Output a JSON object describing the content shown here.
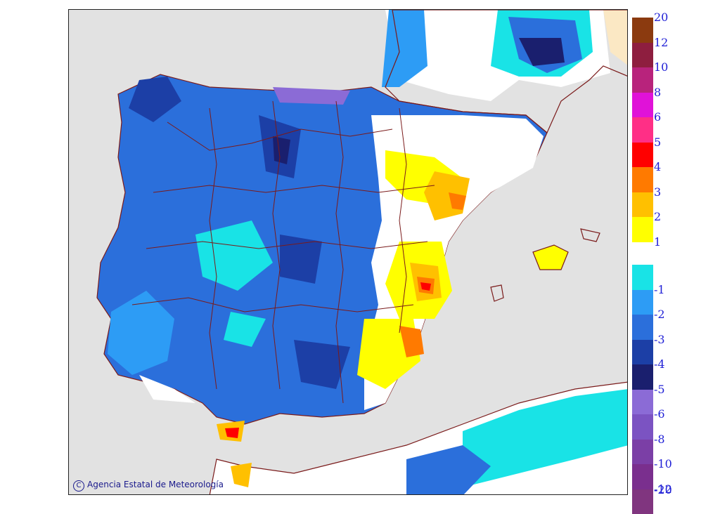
{
  "map": {
    "credit_text": "Agencia Estatal de Meteorología",
    "copyright_symbol": "C",
    "colors": {
      "sea": "#e2e2e2",
      "border": "#7a1a1a",
      "outside_domain": "#fbe8c4"
    }
  },
  "legend": {
    "warm": [
      {
        "label": "20",
        "color": "#8b3a0f"
      },
      {
        "label": "12",
        "color": "#8e1e3f"
      },
      {
        "label": "10",
        "color": "#b8237c"
      },
      {
        "label": "8",
        "color": "#e012d8"
      },
      {
        "label": "6",
        "color": "#ff2f86"
      },
      {
        "label": "5",
        "color": "#ff0000"
      },
      {
        "label": "4",
        "color": "#ff7a00"
      },
      {
        "label": "3",
        "color": "#ffc000"
      },
      {
        "label": "2",
        "color": "#ffff00"
      },
      {
        "label": "1",
        "color": "#ffffff"
      }
    ],
    "cold": [
      {
        "label": "-1",
        "color": "#19e3e6"
      },
      {
        "label": "-2",
        "color": "#2d9cf5"
      },
      {
        "label": "-3",
        "color": "#2b6fdb"
      },
      {
        "label": "-4",
        "color": "#1c3fa6"
      },
      {
        "label": "-5",
        "color": "#1a1f6e"
      },
      {
        "label": "-6",
        "color": "#8b6bd6"
      },
      {
        "label": "-8",
        "color": "#7b53c2"
      },
      {
        "label": "-10",
        "color": "#7b3fa6"
      },
      {
        "label": "-12",
        "color": "#7a2f8e"
      },
      {
        "label": "-20",
        "color": "#80357f"
      }
    ]
  }
}
